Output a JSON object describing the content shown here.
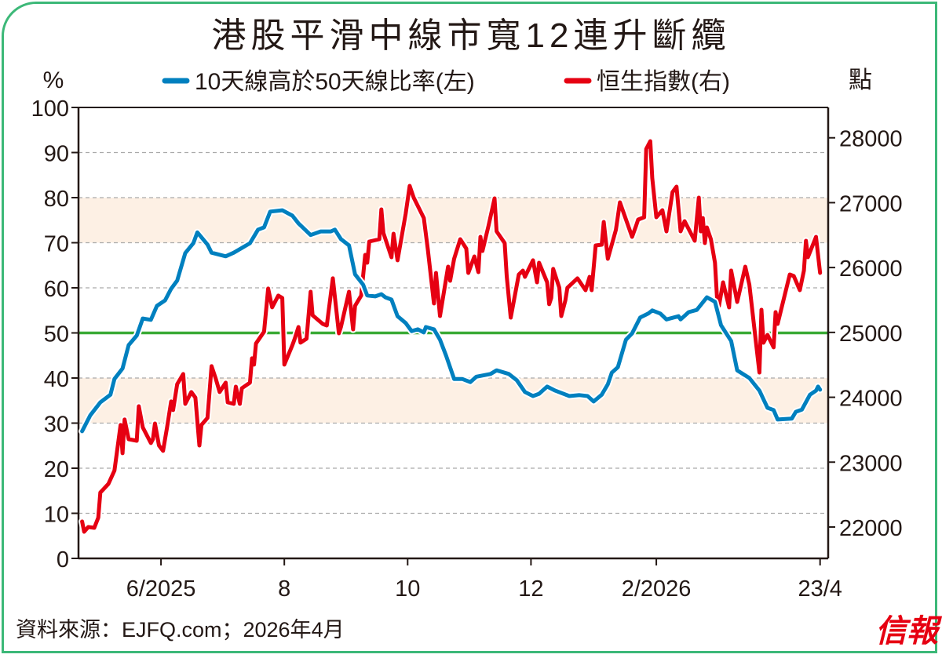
{
  "chart_data": {
    "type": "line",
    "title": "港股平滑中線市寬12連升斷纜",
    "left_axis": {
      "unit_label": "%",
      "ylim": [
        0,
        100
      ],
      "ticks": [
        "0",
        "10",
        "20",
        "30",
        "40",
        "50",
        "60",
        "70",
        "80",
        "90",
        "100"
      ]
    },
    "right_axis": {
      "unit_label": "點",
      "ylim": [
        21516,
        28468
      ],
      "ticks": [
        "22000",
        "23000",
        "24000",
        "25000",
        "26000",
        "27000",
        "28000"
      ]
    },
    "x_axis": {
      "unit": "days since 2025-06-01",
      "xlim": [
        -40.8,
        330
      ],
      "ticks": [
        {
          "day": 0,
          "label": "6/2025"
        },
        {
          "day": 61,
          "label": "8"
        },
        {
          "day": 122,
          "label": "10"
        },
        {
          "day": 183,
          "label": "12"
        },
        {
          "day": 245,
          "label": "2/2026"
        },
        {
          "day": 326,
          "label": "23/4"
        }
      ]
    },
    "shaded_bands_left": [
      [
        30,
        40
      ],
      [
        70,
        80
      ]
    ],
    "reference_line_left": 50,
    "grid": true,
    "legend_position": "top-center",
    "series": [
      {
        "name": "10天線高於50天線比率(左)",
        "axis": "left",
        "color": "#0080bf",
        "points": [
          [
            -39,
            28.2
          ],
          [
            -35,
            31.7
          ],
          [
            -30,
            34.6
          ],
          [
            -25,
            36.3
          ],
          [
            -23,
            39.8
          ],
          [
            -19,
            42.1
          ],
          [
            -16,
            47.3
          ],
          [
            -12,
            49.4
          ],
          [
            -9,
            53.2
          ],
          [
            -5,
            52.9
          ],
          [
            -2,
            56.0
          ],
          [
            2,
            57.2
          ],
          [
            5,
            59.8
          ],
          [
            8,
            61.6
          ],
          [
            12,
            67.7
          ],
          [
            16,
            69.9
          ],
          [
            18,
            72.3
          ],
          [
            23,
            69.6
          ],
          [
            25,
            67.8
          ],
          [
            32,
            67.0
          ],
          [
            36,
            67.8
          ],
          [
            44,
            69.9
          ],
          [
            48,
            72.9
          ],
          [
            51,
            73.4
          ],
          [
            54,
            76.9
          ],
          [
            60,
            77.2
          ],
          [
            65,
            76.0
          ],
          [
            68,
            74.3
          ],
          [
            74,
            71.7
          ],
          [
            79,
            72.5
          ],
          [
            84,
            72.5
          ],
          [
            86,
            72.9
          ],
          [
            89,
            70.8
          ],
          [
            93,
            69.4
          ],
          [
            96,
            63.0
          ],
          [
            100,
            60.7
          ],
          [
            102,
            58.3
          ],
          [
            106,
            58.1
          ],
          [
            109,
            58.6
          ],
          [
            111,
            57.9
          ],
          [
            114,
            57.4
          ],
          [
            117,
            53.7
          ],
          [
            121,
            52.2
          ],
          [
            124,
            50.4
          ],
          [
            127,
            50.8
          ],
          [
            130,
            50.1
          ],
          [
            131,
            51.3
          ],
          [
            135,
            50.8
          ],
          [
            138,
            48.5
          ],
          [
            141,
            45.0
          ],
          [
            145,
            39.8
          ],
          [
            149,
            39.8
          ],
          [
            153,
            39.1
          ],
          [
            156,
            40.3
          ],
          [
            163,
            40.9
          ],
          [
            166,
            41.7
          ],
          [
            172,
            40.9
          ],
          [
            176,
            39.5
          ],
          [
            180,
            36.9
          ],
          [
            184,
            36.0
          ],
          [
            187,
            36.5
          ],
          [
            191,
            38.1
          ],
          [
            195,
            37.2
          ],
          [
            202,
            36.0
          ],
          [
            207,
            36.2
          ],
          [
            211,
            36.0
          ],
          [
            214,
            34.8
          ],
          [
            218,
            36.3
          ],
          [
            221,
            38.6
          ],
          [
            223,
            41.2
          ],
          [
            226,
            42.4
          ],
          [
            230,
            48.5
          ],
          [
            233,
            49.9
          ],
          [
            237,
            53.4
          ],
          [
            241,
            54.3
          ],
          [
            243,
            55.0
          ],
          [
            247,
            54.3
          ],
          [
            250,
            53.0
          ],
          [
            256,
            53.7
          ],
          [
            257,
            53.0
          ],
          [
            261,
            54.6
          ],
          [
            265,
            55.1
          ],
          [
            270,
            57.9
          ],
          [
            274,
            56.9
          ],
          [
            277,
            51.7
          ],
          [
            282,
            48.2
          ],
          [
            285,
            41.7
          ],
          [
            291,
            40.0
          ],
          [
            296,
            37.2
          ],
          [
            300,
            33.4
          ],
          [
            303,
            32.9
          ],
          [
            305,
            30.8
          ],
          [
            312,
            31.0
          ],
          [
            314,
            32.5
          ],
          [
            317,
            33.0
          ],
          [
            321,
            36.3
          ],
          [
            324,
            37.2
          ],
          [
            325,
            38.1
          ],
          [
            326,
            37.4
          ]
        ]
      },
      {
        "name": "恒生指數(右)",
        "axis": "right",
        "color": "#e60012",
        "points": [
          [
            -39,
            22085
          ],
          [
            -38,
            21927
          ],
          [
            -36,
            22000
          ],
          [
            -33,
            21988
          ],
          [
            -31,
            22145
          ],
          [
            -30,
            22532
          ],
          [
            -26,
            22665
          ],
          [
            -23,
            22870
          ],
          [
            -20,
            23572
          ],
          [
            -19,
            23137
          ],
          [
            -18,
            23657
          ],
          [
            -16,
            23354
          ],
          [
            -12,
            23330
          ],
          [
            -11,
            23862
          ],
          [
            -9,
            23535
          ],
          [
            -5,
            23294
          ],
          [
            -4,
            23354
          ],
          [
            -3,
            23596
          ],
          [
            -1,
            23257
          ],
          [
            1,
            23173
          ],
          [
            3,
            23535
          ],
          [
            5,
            23935
          ],
          [
            6,
            23802
          ],
          [
            8,
            24201
          ],
          [
            11,
            24358
          ],
          [
            12,
            23898
          ],
          [
            15,
            24080
          ],
          [
            17,
            23995
          ],
          [
            19,
            23257
          ],
          [
            20,
            23572
          ],
          [
            23,
            23681
          ],
          [
            25,
            24479
          ],
          [
            27,
            24297
          ],
          [
            29,
            24080
          ],
          [
            32,
            24225
          ],
          [
            33,
            23922
          ],
          [
            36,
            23898
          ],
          [
            37,
            24164
          ],
          [
            39,
            23898
          ],
          [
            40,
            24140
          ],
          [
            44,
            24225
          ],
          [
            45,
            24600
          ],
          [
            46,
            24503
          ],
          [
            47,
            24830
          ],
          [
            51,
            25011
          ],
          [
            53,
            25676
          ],
          [
            55,
            25386
          ],
          [
            58,
            25567
          ],
          [
            60,
            25531
          ],
          [
            61,
            24503
          ],
          [
            65,
            24805
          ],
          [
            66,
            24890
          ],
          [
            68,
            25083
          ],
          [
            69,
            24842
          ],
          [
            72,
            24902
          ],
          [
            74,
            25627
          ],
          [
            75,
            25264
          ],
          [
            80,
            25131
          ],
          [
            82,
            25107
          ],
          [
            85,
            25833
          ],
          [
            88,
            24986
          ],
          [
            89,
            25083
          ],
          [
            93,
            25627
          ],
          [
            95,
            25047
          ],
          [
            96,
            25409
          ],
          [
            99,
            25567
          ],
          [
            101,
            26195
          ],
          [
            102,
            26074
          ],
          [
            103,
            26401
          ],
          [
            108,
            26437
          ],
          [
            109,
            26896
          ],
          [
            110,
            26534
          ],
          [
            114,
            26159
          ],
          [
            115,
            26522
          ],
          [
            117,
            26111
          ],
          [
            121,
            26824
          ],
          [
            123,
            27259
          ],
          [
            125,
            27078
          ],
          [
            130,
            26763
          ],
          [
            132,
            26280
          ],
          [
            135,
            25446
          ],
          [
            136,
            25917
          ],
          [
            138,
            25252
          ],
          [
            142,
            26014
          ],
          [
            143,
            25796
          ],
          [
            145,
            26135
          ],
          [
            148,
            26437
          ],
          [
            151,
            26292
          ],
          [
            152,
            25917
          ],
          [
            155,
            26171
          ],
          [
            157,
            25929
          ],
          [
            158,
            26473
          ],
          [
            159,
            26256
          ],
          [
            162,
            26643
          ],
          [
            165,
            27066
          ],
          [
            166,
            26558
          ],
          [
            170,
            26377
          ],
          [
            171,
            25869
          ],
          [
            173,
            25228
          ],
          [
            177,
            25893
          ],
          [
            179,
            25953
          ],
          [
            180,
            25857
          ],
          [
            184,
            26111
          ],
          [
            186,
            25772
          ],
          [
            187,
            26074
          ],
          [
            191,
            25772
          ],
          [
            192,
            25434
          ],
          [
            193,
            25531
          ],
          [
            194,
            25978
          ],
          [
            197,
            25688
          ],
          [
            198,
            25252
          ],
          [
            200,
            25494
          ],
          [
            201,
            25688
          ],
          [
            206,
            25833
          ],
          [
            210,
            25651
          ],
          [
            212,
            25857
          ],
          [
            213,
            25651
          ],
          [
            215,
            26340
          ],
          [
            218,
            26352
          ],
          [
            219,
            26703
          ],
          [
            221,
            26135
          ],
          [
            225,
            26582
          ],
          [
            227,
            27005
          ],
          [
            233,
            26473
          ],
          [
            235,
            26643
          ],
          [
            236,
            26739
          ],
          [
            239,
            26775
          ],
          [
            240,
            27827
          ],
          [
            242,
            27948
          ],
          [
            243,
            27380
          ],
          [
            245,
            26775
          ],
          [
            248,
            26884
          ],
          [
            250,
            26558
          ],
          [
            253,
            27162
          ],
          [
            255,
            27247
          ],
          [
            257,
            26558
          ],
          [
            259,
            26715
          ],
          [
            264,
            26413
          ],
          [
            266,
            27078
          ],
          [
            267,
            26558
          ],
          [
            268,
            26763
          ],
          [
            269,
            26377
          ],
          [
            270,
            26618
          ],
          [
            272,
            26437
          ],
          [
            274,
            26074
          ],
          [
            275,
            25554
          ],
          [
            276,
            25409
          ],
          [
            278,
            25772
          ],
          [
            281,
            25385
          ],
          [
            282,
            25953
          ],
          [
            285,
            25470
          ],
          [
            289,
            26014
          ],
          [
            291,
            25736
          ],
          [
            296,
            24382
          ],
          [
            297,
            25349
          ],
          [
            298,
            24841
          ],
          [
            300,
            24962
          ],
          [
            303,
            24769
          ],
          [
            304,
            25313
          ],
          [
            305,
            25131
          ],
          [
            311,
            25893
          ],
          [
            313,
            25869
          ],
          [
            316,
            25651
          ],
          [
            318,
            25953
          ],
          [
            319,
            26413
          ],
          [
            320,
            26159
          ],
          [
            324,
            26473
          ],
          [
            326,
            25917
          ]
        ]
      }
    ],
    "legend": [
      "10天線高於50天線比率(左)",
      "恒生指數(右)"
    ],
    "source": "資料來源：EJFQ.com；2026年4月",
    "logo": "信報"
  },
  "colors": {
    "border": "#3cb878",
    "band": "#fdf0e4",
    "reference": "#3aaa35",
    "grid": "#aaaaaa"
  }
}
